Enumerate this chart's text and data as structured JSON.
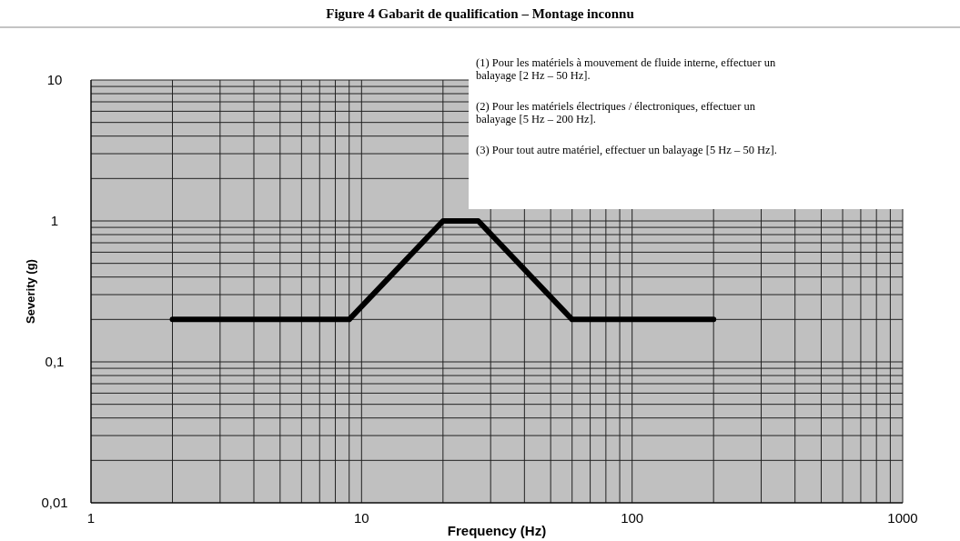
{
  "chart_data": {
    "type": "line",
    "title": "Figure 4 Gabarit de qualification – Montage inconnu",
    "xlabel": "Frequency (Hz)",
    "ylabel": "Severity (g)",
    "x": [
      2,
      9,
      20,
      27,
      60,
      200
    ],
    "series": [
      {
        "color": "#000000",
        "values": [
          0.2,
          0.2,
          1,
          1,
          0.2,
          0.2
        ]
      }
    ],
    "log": "xy",
    "xlim": [
      1,
      1000
    ],
    "ylim": [
      0.01,
      10
    ],
    "xticks": [
      1,
      10,
      100,
      1000
    ],
    "yticks": [
      {
        "value": 0.01,
        "label": "0,01"
      },
      {
        "value": 0.1,
        "label": "0,1"
      },
      {
        "value": 1,
        "label": "1"
      },
      {
        "value": 10,
        "label": "10"
      }
    ],
    "grid": true,
    "marker": "none",
    "line_style": "solid",
    "annotations": [
      "(1) Pour les matériels à mouvement de fluide interne, effectuer un balayage [2 Hz – 50 Hz].",
      "(2) Pour les matériels électriques / électroniques, effectuer un balayage [5 Hz – 200 Hz].",
      "(3) Pour tout autre matériel, effectuer un balayage [5 Hz – 50 Hz]."
    ]
  }
}
